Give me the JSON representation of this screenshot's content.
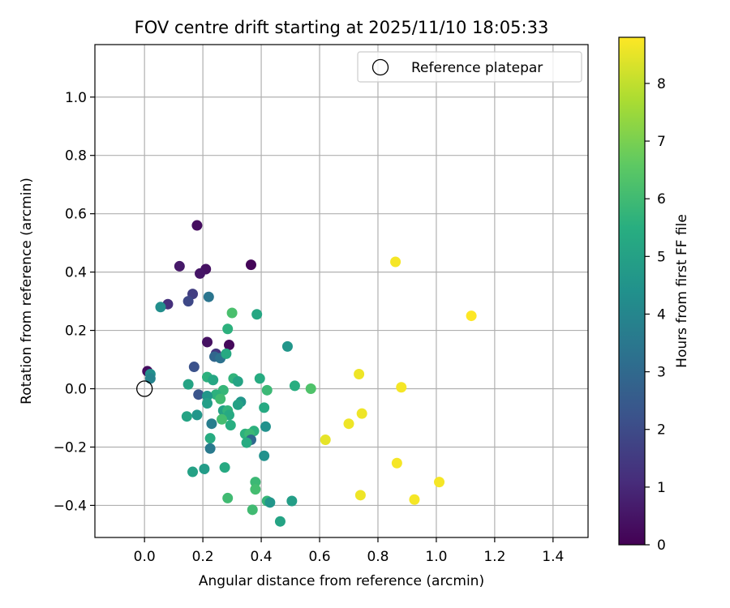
{
  "chart_data": {
    "type": "scatter",
    "title": "FOV centre drift starting at 2025/11/10 18:05:33",
    "xlabel": "Angular distance from reference (arcmin)",
    "ylabel": "Rotation from reference (arcmin)",
    "xlim": [
      -0.17,
      1.52
    ],
    "ylim": [
      -0.51,
      1.18
    ],
    "xticks": [
      0.0,
      0.2,
      0.4,
      0.6,
      0.8,
      1.0,
      1.2,
      1.4
    ],
    "xtick_labels": [
      "0.0",
      "0.2",
      "0.4",
      "0.6",
      "0.8",
      "1.0",
      "1.2",
      "1.4"
    ],
    "yticks": [
      -0.4,
      -0.2,
      0.0,
      0.2,
      0.4,
      0.6,
      0.8,
      1.0
    ],
    "ytick_labels": [
      "−0.4",
      "−0.2",
      "0.0",
      "0.2",
      "0.4",
      "0.6",
      "0.8",
      "1.0"
    ],
    "grid": true,
    "legend": {
      "location": "top-right",
      "entries": [
        {
          "label": "Reference platepar",
          "marker": "open-circle"
        }
      ]
    },
    "reference_point": {
      "x": 0.0,
      "y": 0.0
    },
    "colorbar": {
      "label": "Hours from first FF file",
      "colormap": "viridis",
      "min": 0,
      "max": 8.8,
      "ticks": [
        0,
        1,
        2,
        3,
        4,
        5,
        6,
        7,
        8
      ],
      "tick_labels": [
        "0",
        "1",
        "2",
        "3",
        "4",
        "5",
        "6",
        "7",
        "8"
      ]
    },
    "points": [
      {
        "x": 0.18,
        "y": 0.56,
        "h": 0.3
      },
      {
        "x": 0.365,
        "y": 0.425,
        "h": 0.1
      },
      {
        "x": 0.12,
        "y": 0.42,
        "h": 0.6
      },
      {
        "x": 0.21,
        "y": 0.41,
        "h": 0.4
      },
      {
        "x": 0.19,
        "y": 0.395,
        "h": 0.5
      },
      {
        "x": 0.165,
        "y": 0.325,
        "h": 1.6
      },
      {
        "x": 0.08,
        "y": 0.29,
        "h": 1.2
      },
      {
        "x": 0.15,
        "y": 0.3,
        "h": 1.9
      },
      {
        "x": 0.22,
        "y": 0.315,
        "h": 3.4
      },
      {
        "x": 0.055,
        "y": 0.28,
        "h": 4.3
      },
      {
        "x": 0.3,
        "y": 0.26,
        "h": 6.2
      },
      {
        "x": 0.385,
        "y": 0.255,
        "h": 5.2
      },
      {
        "x": 0.285,
        "y": 0.205,
        "h": 5.6
      },
      {
        "x": 0.215,
        "y": 0.16,
        "h": 0.4
      },
      {
        "x": 0.29,
        "y": 0.15,
        "h": 0.2
      },
      {
        "x": 0.49,
        "y": 0.145,
        "h": 4.6
      },
      {
        "x": 0.245,
        "y": 0.12,
        "h": 1.4
      },
      {
        "x": 0.24,
        "y": 0.11,
        "h": 2.9
      },
      {
        "x": 0.26,
        "y": 0.105,
        "h": 3.3
      },
      {
        "x": 0.28,
        "y": 0.12,
        "h": 5.3
      },
      {
        "x": 0.17,
        "y": 0.075,
        "h": 2.2
      },
      {
        "x": 0.01,
        "y": 0.06,
        "h": 0.3
      },
      {
        "x": 0.02,
        "y": 0.05,
        "h": 4.3
      },
      {
        "x": 0.02,
        "y": 0.035,
        "h": 3.9
      },
      {
        "x": 0.215,
        "y": 0.04,
        "h": 5.6
      },
      {
        "x": 0.235,
        "y": 0.03,
        "h": 5.2
      },
      {
        "x": 0.305,
        "y": 0.035,
        "h": 5.7
      },
      {
        "x": 0.32,
        "y": 0.025,
        "h": 5.1
      },
      {
        "x": 0.395,
        "y": 0.035,
        "h": 5.4
      },
      {
        "x": 0.15,
        "y": 0.015,
        "h": 5.1
      },
      {
        "x": 0.515,
        "y": 0.01,
        "h": 5.5
      },
      {
        "x": 0.57,
        "y": 0.0,
        "h": 6.3
      },
      {
        "x": 0.42,
        "y": -0.005,
        "h": 5.9
      },
      {
        "x": 0.27,
        "y": -0.005,
        "h": 5.8
      },
      {
        "x": 0.245,
        "y": -0.02,
        "h": 5.6
      },
      {
        "x": 0.185,
        "y": -0.02,
        "h": 2.3
      },
      {
        "x": 0.215,
        "y": -0.025,
        "h": 4.6
      },
      {
        "x": 0.26,
        "y": -0.035,
        "h": 6.0
      },
      {
        "x": 0.215,
        "y": -0.05,
        "h": 4.9
      },
      {
        "x": 0.33,
        "y": -0.045,
        "h": 4.6
      },
      {
        "x": 0.32,
        "y": -0.055,
        "h": 5.0
      },
      {
        "x": 0.41,
        "y": -0.065,
        "h": 5.3
      },
      {
        "x": 0.27,
        "y": -0.075,
        "h": 5.0
      },
      {
        "x": 0.285,
        "y": -0.075,
        "h": 5.7
      },
      {
        "x": 0.29,
        "y": -0.09,
        "h": 5.3
      },
      {
        "x": 0.18,
        "y": -0.09,
        "h": 4.6
      },
      {
        "x": 0.145,
        "y": -0.095,
        "h": 5.1
      },
      {
        "x": 0.265,
        "y": -0.105,
        "h": 6.1
      },
      {
        "x": 0.23,
        "y": -0.12,
        "h": 3.7
      },
      {
        "x": 0.295,
        "y": -0.125,
        "h": 5.5
      },
      {
        "x": 0.415,
        "y": -0.13,
        "h": 4.4
      },
      {
        "x": 0.375,
        "y": -0.145,
        "h": 5.6
      },
      {
        "x": 0.345,
        "y": -0.155,
        "h": 5.6
      },
      {
        "x": 0.36,
        "y": -0.155,
        "h": 5.9
      },
      {
        "x": 0.225,
        "y": -0.17,
        "h": 5.4
      },
      {
        "x": 0.365,
        "y": -0.175,
        "h": 3.0
      },
      {
        "x": 0.35,
        "y": -0.185,
        "h": 5.4
      },
      {
        "x": 0.225,
        "y": -0.205,
        "h": 3.6
      },
      {
        "x": 0.41,
        "y": -0.23,
        "h": 4.4
      },
      {
        "x": 0.205,
        "y": -0.275,
        "h": 4.8
      },
      {
        "x": 0.275,
        "y": -0.27,
        "h": 5.3
      },
      {
        "x": 0.165,
        "y": -0.285,
        "h": 5.0
      },
      {
        "x": 0.38,
        "y": -0.32,
        "h": 5.9
      },
      {
        "x": 0.38,
        "y": -0.345,
        "h": 6.1
      },
      {
        "x": 0.285,
        "y": -0.375,
        "h": 6.0
      },
      {
        "x": 0.42,
        "y": -0.385,
        "h": 5.8
      },
      {
        "x": 0.43,
        "y": -0.39,
        "h": 4.6
      },
      {
        "x": 0.505,
        "y": -0.385,
        "h": 4.9
      },
      {
        "x": 0.37,
        "y": -0.415,
        "h": 6.0
      },
      {
        "x": 0.465,
        "y": -0.455,
        "h": 5.1
      },
      {
        "x": 0.86,
        "y": 0.435,
        "h": 8.7
      },
      {
        "x": 1.12,
        "y": 0.25,
        "h": 8.8
      },
      {
        "x": 0.735,
        "y": 0.05,
        "h": 8.6
      },
      {
        "x": 0.88,
        "y": 0.005,
        "h": 8.7
      },
      {
        "x": 0.745,
        "y": -0.085,
        "h": 8.6
      },
      {
        "x": 0.7,
        "y": -0.12,
        "h": 8.6
      },
      {
        "x": 0.62,
        "y": -0.175,
        "h": 8.5
      },
      {
        "x": 0.865,
        "y": -0.255,
        "h": 8.7
      },
      {
        "x": 1.01,
        "y": -0.32,
        "h": 8.7
      },
      {
        "x": 0.74,
        "y": -0.365,
        "h": 8.6
      },
      {
        "x": 0.925,
        "y": -0.38,
        "h": 8.7
      }
    ]
  }
}
